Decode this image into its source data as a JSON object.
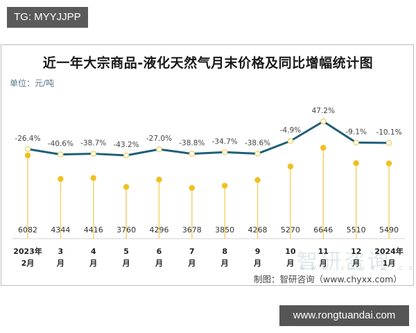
{
  "overlay": {
    "top_tag": "TG: MYYJJPP",
    "bottom_tag": "www.rongtuandai.com"
  },
  "chart": {
    "title": "近一年大宗商品-液化天然气月末价格及同比增幅统计图",
    "unit": "单位：元/吨",
    "credit": "制图：智研咨询（www.chyxx.com）",
    "watermark": "智研咨询",
    "watermark_url": "www.chyxx.com"
  },
  "chart_data": {
    "type": "line",
    "title": "近一年大宗商品-液化天然气月末价格及同比增幅统计图",
    "unit": "元/吨",
    "categories": [
      "2023年2月",
      "3月",
      "4月",
      "5月",
      "6月",
      "7月",
      "8月",
      "9月",
      "10月",
      "11月",
      "12月",
      "2024年1月"
    ],
    "category_lines": [
      [
        "2023年",
        "2月"
      ],
      [
        "3",
        "月"
      ],
      [
        "4",
        "月"
      ],
      [
        "5",
        "月"
      ],
      [
        "6",
        "月"
      ],
      [
        "7",
        "月"
      ],
      [
        "8",
        "月"
      ],
      [
        "9",
        "月"
      ],
      [
        "10",
        "月"
      ],
      [
        "11",
        "月"
      ],
      [
        "12",
        "月"
      ],
      [
        "2024年",
        "1月"
      ]
    ],
    "series": [
      {
        "name": "月末价格（元/吨）",
        "type": "lollipop",
        "color": "#f0c020",
        "values": [
          6082,
          4344,
          4416,
          3760,
          4296,
          3678,
          3850,
          4268,
          5270,
          6646,
          5510,
          5490
        ],
        "labels": [
          "6082",
          "4344",
          "4416",
          "3760",
          "4296",
          "3678",
          "3850",
          "4268",
          "5270",
          "6646",
          "5510",
          "5490"
        ]
      },
      {
        "name": "同比增幅（%）",
        "type": "line",
        "color": "#1f5f7a",
        "values": [
          -26.4,
          -40.6,
          -38.7,
          -43.2,
          -27.0,
          -38.8,
          -34.7,
          -38.6,
          -4.9,
          47.2,
          -9.1,
          -10.1
        ],
        "labels": [
          "-26.4%",
          "-40.6%",
          "-38.7%",
          "-43.2%",
          "-27.0%",
          "-38.8%",
          "-34.7%",
          "-38.6%",
          "-4.9%",
          "47.2%",
          "-9.1%",
          "-10.1%"
        ]
      }
    ],
    "grid": false,
    "legend": "none"
  }
}
